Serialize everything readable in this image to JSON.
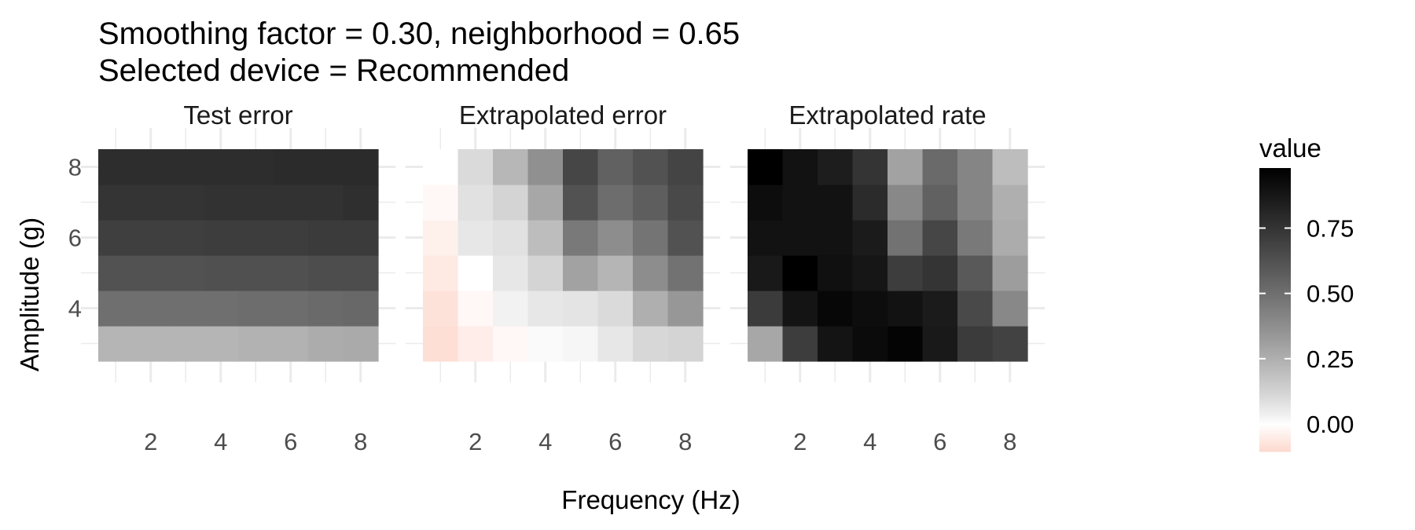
{
  "chart_data": {
    "type": "heatmap",
    "title": "Smoothing factor = 0.30, neighborhood = 0.65",
    "subtitle": "Selected device = Recommended",
    "xlabel": "Frequency (Hz)",
    "ylabel": "Amplitude (g)",
    "x": [
      1,
      2,
      3,
      4,
      5,
      6,
      7,
      8
    ],
    "y": [
      3,
      4,
      5,
      6,
      7,
      8
    ],
    "x_ticks": [
      "2",
      "4",
      "6",
      "8"
    ],
    "y_ticks": [
      "4",
      "6",
      "8"
    ],
    "grid": true,
    "legend": {
      "title": "value",
      "position": "right",
      "labels": [
        "0.00",
        "0.25",
        "0.50",
        "0.75"
      ],
      "range": [
        -0.1,
        0.98
      ],
      "low_color": "#FDDBD0",
      "mid_color": "#FFFFFF",
      "high_color": "#000000"
    },
    "panels": [
      {
        "name": "Test error",
        "values": [
          [
            0.23,
            0.23,
            0.23,
            0.23,
            0.24,
            0.24,
            0.26,
            0.27
          ],
          [
            0.5,
            0.5,
            0.5,
            0.5,
            0.51,
            0.51,
            0.52,
            0.53
          ],
          [
            0.62,
            0.62,
            0.62,
            0.63,
            0.63,
            0.63,
            0.64,
            0.64
          ],
          [
            0.7,
            0.7,
            0.7,
            0.71,
            0.71,
            0.71,
            0.72,
            0.72
          ],
          [
            0.75,
            0.75,
            0.75,
            0.76,
            0.76,
            0.76,
            0.76,
            0.77
          ],
          [
            0.78,
            0.78,
            0.78,
            0.78,
            0.78,
            0.79,
            0.79,
            0.79
          ]
        ]
      },
      {
        "name": "Extrapolated error",
        "values": [
          [
            -0.09,
            -0.05,
            -0.02,
            0.01,
            0.02,
            0.06,
            0.11,
            0.12
          ],
          [
            -0.08,
            -0.02,
            0.03,
            0.06,
            0.07,
            0.1,
            0.25,
            0.34
          ],
          [
            -0.06,
            0.0,
            0.06,
            0.12,
            0.3,
            0.23,
            0.38,
            0.49
          ],
          [
            -0.04,
            0.06,
            0.08,
            0.2,
            0.46,
            0.38,
            0.48,
            0.62
          ],
          [
            -0.02,
            0.08,
            0.12,
            0.28,
            0.62,
            0.51,
            0.57,
            0.66
          ],
          [
            0.0,
            0.1,
            0.22,
            0.37,
            0.67,
            0.56,
            0.62,
            0.68
          ]
        ]
      },
      {
        "name": "Extrapolated rate",
        "values": [
          [
            0.28,
            0.71,
            0.89,
            0.93,
            0.96,
            0.87,
            0.72,
            0.69
          ],
          [
            0.72,
            0.89,
            0.95,
            0.92,
            0.9,
            0.86,
            0.66,
            0.4
          ],
          [
            0.87,
            0.98,
            0.91,
            0.88,
            0.71,
            0.75,
            0.59,
            0.32
          ],
          [
            0.9,
            0.9,
            0.9,
            0.86,
            0.49,
            0.67,
            0.46,
            0.26
          ],
          [
            0.92,
            0.9,
            0.9,
            0.79,
            0.4,
            0.56,
            0.41,
            0.25
          ],
          [
            0.98,
            0.9,
            0.85,
            0.75,
            0.3,
            0.52,
            0.41,
            0.2
          ]
        ]
      }
    ]
  }
}
